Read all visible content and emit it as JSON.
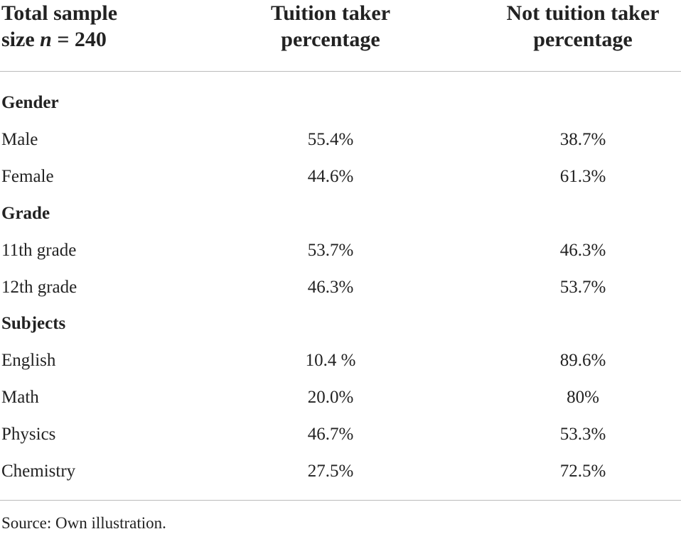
{
  "table": {
    "header": {
      "first": {
        "text": "Total sample size",
        "italic": "n",
        "rest": "= 240"
      },
      "columns": [
        "Tuition taker percentage",
        "Not tuition taker percentage"
      ]
    },
    "sections": [
      {
        "title": "Gender",
        "rows": [
          [
            "Male",
            "55.4%",
            "38.7%"
          ],
          [
            "Female",
            "44.6%",
            "61.3%"
          ]
        ]
      },
      {
        "title": "Grade",
        "rows": [
          [
            "11th grade",
            "53.7%",
            "46.3%"
          ],
          [
            "12th grade",
            "46.3%",
            "53.7%"
          ]
        ]
      },
      {
        "title": "Subjects",
        "rows": [
          [
            "English",
            "10.4 %",
            "89.6%"
          ],
          [
            "Math",
            "20.0%",
            "80%"
          ],
          [
            "Physics",
            "46.7%",
            "53.3%"
          ],
          [
            "Chemistry",
            "27.5%",
            "72.5%"
          ]
        ]
      }
    ]
  },
  "footnote": "Source: Own illustration."
}
